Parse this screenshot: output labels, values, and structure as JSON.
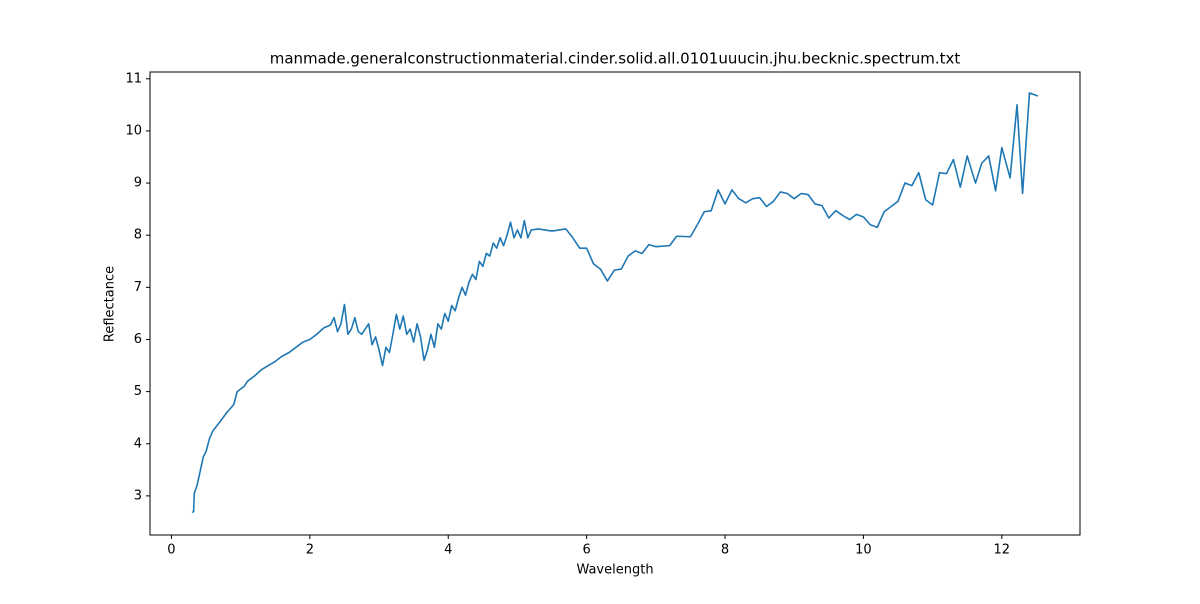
{
  "chart_data": {
    "type": "line",
    "title": "manmade.generalconstructionmaterial.cinder.solid.all.0101uuucin.jhu.becknic.spectrum.txt",
    "x_label": "Wavelength",
    "y_label": "Reflectance",
    "xlim": [
      -0.31,
      13.13
    ],
    "ylim": [
      2.25,
      11.13
    ],
    "xticks": [
      0,
      2,
      4,
      6,
      8,
      10,
      12
    ],
    "yticks": [
      3,
      4,
      5,
      6,
      7,
      8,
      9,
      10,
      11
    ],
    "series": [
      {
        "color": "#1f77b4",
        "x": [
          0.3,
          0.32,
          0.33,
          0.37,
          0.42,
          0.46,
          0.5,
          0.55,
          0.6,
          0.7,
          0.8,
          0.9,
          0.95,
          1.0,
          1.05,
          1.1,
          1.2,
          1.3,
          1.4,
          1.5,
          1.6,
          1.7,
          1.8,
          1.9,
          2.0,
          2.1,
          2.2,
          2.3,
          2.35,
          2.4,
          2.45,
          2.5,
          2.55,
          2.6,
          2.65,
          2.7,
          2.75,
          2.8,
          2.85,
          2.9,
          2.95,
          3.0,
          3.05,
          3.1,
          3.15,
          3.2,
          3.25,
          3.3,
          3.35,
          3.4,
          3.45,
          3.5,
          3.55,
          3.6,
          3.65,
          3.7,
          3.75,
          3.8,
          3.85,
          3.9,
          3.95,
          4.0,
          4.05,
          4.1,
          4.15,
          4.2,
          4.25,
          4.3,
          4.35,
          4.4,
          4.45,
          4.5,
          4.55,
          4.6,
          4.65,
          4.7,
          4.75,
          4.8,
          4.85,
          4.9,
          4.95,
          5.0,
          5.05,
          5.1,
          5.15,
          5.2,
          5.3,
          5.5,
          5.7,
          5.8,
          5.9,
          6.0,
          6.1,
          6.2,
          6.3,
          6.4,
          6.5,
          6.6,
          6.7,
          6.8,
          6.9,
          7.0,
          7.2,
          7.3,
          7.5,
          7.6,
          7.7,
          7.8,
          7.9,
          8.0,
          8.1,
          8.2,
          8.3,
          8.4,
          8.5,
          8.6,
          8.7,
          8.8,
          8.9,
          9.0,
          9.1,
          9.2,
          9.3,
          9.4,
          9.5,
          9.6,
          9.7,
          9.8,
          9.9,
          10.0,
          10.1,
          10.2,
          10.3,
          10.4,
          10.5,
          10.6,
          10.7,
          10.8,
          10.9,
          11.0,
          11.1,
          11.2,
          11.3,
          11.4,
          11.5,
          11.62,
          11.71,
          11.81,
          11.91,
          12.0,
          12.12,
          12.22,
          12.3,
          12.4,
          12.52
        ],
        "values": [
          2.68,
          2.7,
          3.05,
          3.2,
          3.5,
          3.75,
          3.85,
          4.1,
          4.25,
          4.42,
          4.6,
          4.75,
          5.0,
          5.05,
          5.1,
          5.2,
          5.3,
          5.42,
          5.5,
          5.58,
          5.68,
          5.75,
          5.85,
          5.95,
          6.0,
          6.1,
          6.22,
          6.28,
          6.42,
          6.15,
          6.3,
          6.67,
          6.1,
          6.2,
          6.42,
          6.15,
          6.1,
          6.2,
          6.3,
          5.9,
          6.05,
          5.8,
          5.5,
          5.85,
          5.75,
          6.1,
          6.48,
          6.2,
          6.45,
          6.1,
          6.2,
          5.95,
          6.3,
          6.05,
          5.6,
          5.8,
          6.1,
          5.85,
          6.3,
          6.2,
          6.5,
          6.35,
          6.65,
          6.55,
          6.8,
          7.0,
          6.85,
          7.1,
          7.25,
          7.15,
          7.5,
          7.4,
          7.65,
          7.6,
          7.85,
          7.75,
          7.95,
          7.8,
          8.0,
          8.25,
          7.95,
          8.1,
          7.95,
          8.28,
          7.95,
          8.1,
          8.12,
          8.08,
          8.12,
          7.95,
          7.75,
          7.75,
          7.45,
          7.35,
          7.12,
          7.33,
          7.35,
          7.6,
          7.7,
          7.65,
          7.82,
          7.78,
          7.8,
          7.98,
          7.97,
          8.2,
          8.45,
          8.47,
          8.87,
          8.6,
          8.87,
          8.7,
          8.62,
          8.7,
          8.72,
          8.55,
          8.65,
          8.83,
          8.8,
          8.7,
          8.8,
          8.78,
          8.6,
          8.57,
          8.33,
          8.47,
          8.38,
          8.3,
          8.4,
          8.35,
          8.2,
          8.15,
          8.45,
          8.55,
          8.65,
          9.0,
          8.95,
          9.2,
          8.68,
          8.58,
          9.2,
          9.18,
          9.45,
          8.92,
          9.52,
          9.0,
          9.38,
          9.52,
          8.85,
          9.68,
          9.1,
          10.5,
          8.8,
          10.73,
          10.67
        ]
      }
    ]
  }
}
